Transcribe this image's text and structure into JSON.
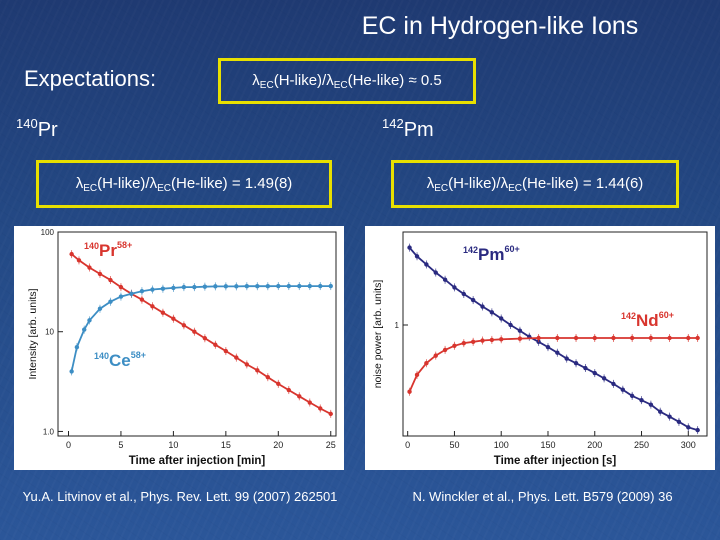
{
  "slide": {
    "title": "EC in Hydrogen-like Ions",
    "expectations_label": "Expectations:",
    "expect_ratio": {
      "lambda": "λ",
      "sub1": "EC",
      "mid": "(H-like)/",
      "sub2": "EC",
      "tail": "(He-like) ≈ 0.5"
    },
    "left_isotope": {
      "mass": "140",
      "symbol": "Pr"
    },
    "right_isotope": {
      "mass": "142",
      "symbol": "Pm"
    },
    "left_ratio": {
      "lambda": "λ",
      "sub1": "EC",
      "mid": "(H-like)/",
      "sub2": "EC",
      "tail": "(He-like) = 1.49(8)"
    },
    "right_ratio": {
      "lambda": "λ",
      "sub1": "EC",
      "mid": "(H-like)/",
      "sub2": "EC",
      "tail": "(He-like) = 1.44(6)"
    },
    "left_citation": "Yu.A. Litvinov et al., Phys. Rev. Lett. 99 (2007) 262501",
    "right_citation": "N. Winckler et al., Phys. Lett. B579 (2009) 36"
  },
  "colors": {
    "highlight": "#e8e000",
    "series_red": "#d8352e",
    "series_blue": "#3d8ec4",
    "series_navy": "#2a2a80",
    "label_red": "#d8352e",
    "label_blue": "#3d8ec4"
  },
  "chart_data": [
    {
      "type": "scatter",
      "title": "",
      "xlabel": "Time after injection [min]",
      "ylabel": "Intensity [arb. units]",
      "xlim": [
        -1,
        25.5
      ],
      "ylim": [
        0.9,
        100
      ],
      "yscale": "log",
      "x_ticks": [
        0,
        5,
        10,
        15,
        20,
        25
      ],
      "y_ticks": [
        1.0,
        10,
        100
      ],
      "y_tick_labels": [
        "1.0",
        "10",
        "100"
      ],
      "series": [
        {
          "name": "140Pr58+",
          "color": "#d8352e",
          "label_mass": "140",
          "label_symbol": "Pr",
          "label_charge": "58+",
          "x": [
            0.3,
            1,
            2,
            3,
            4,
            5,
            6,
            7,
            8,
            9,
            10,
            11,
            12,
            13,
            14,
            15,
            16,
            17,
            18,
            19,
            20,
            21,
            22,
            23,
            24,
            25
          ],
          "y": [
            60,
            52,
            44,
            38,
            33,
            28,
            24,
            21,
            18,
            15.5,
            13.5,
            11.6,
            10,
            8.6,
            7.4,
            6.4,
            5.5,
            4.7,
            4.1,
            3.5,
            3.0,
            2.6,
            2.25,
            1.95,
            1.7,
            1.5
          ]
        },
        {
          "name": "140Ce58+",
          "color": "#3d8ec4",
          "label_mass": "140",
          "label_symbol": "Ce",
          "label_charge": "58+",
          "x": [
            0.3,
            0.8,
            1.5,
            2,
            3,
            4,
            5,
            6,
            7,
            8,
            9,
            10,
            11,
            12,
            13,
            14,
            15,
            16,
            17,
            18,
            19,
            20,
            21,
            22,
            23,
            24,
            25
          ],
          "y": [
            4,
            7,
            10.5,
            13,
            17,
            20,
            22.5,
            24,
            25.5,
            26.5,
            27,
            27.5,
            28,
            28,
            28.3,
            28.5,
            28.5,
            28.5,
            28.6,
            28.6,
            28.6,
            28.7,
            28.7,
            28.7,
            28.7,
            28.7,
            28.7
          ]
        }
      ]
    },
    {
      "type": "scatter",
      "title": "",
      "xlabel": "Time after injection [s]",
      "ylabel": "noise power [arb. units]",
      "xlim": [
        -5,
        320
      ],
      "ylim": [
        0.37,
        2.3
      ],
      "yscale": "log",
      "x_ticks": [
        0,
        50,
        100,
        150,
        200,
        250,
        300
      ],
      "y_ticks": [
        1
      ],
      "y_tick_labels": [
        "1"
      ],
      "series": [
        {
          "name": "142Pm60+",
          "color": "#2a2a80",
          "label_mass": "142",
          "label_symbol": "Pm",
          "label_charge": "60+",
          "x": [
            2,
            10,
            20,
            30,
            40,
            50,
            60,
            70,
            80,
            90,
            100,
            110,
            120,
            130,
            140,
            150,
            160,
            170,
            180,
            190,
            200,
            210,
            220,
            230,
            240,
            250,
            260,
            270,
            280,
            290,
            300,
            310
          ],
          "y": [
            2.0,
            1.85,
            1.72,
            1.6,
            1.5,
            1.4,
            1.32,
            1.25,
            1.18,
            1.12,
            1.06,
            1.0,
            0.95,
            0.9,
            0.86,
            0.82,
            0.78,
            0.74,
            0.71,
            0.68,
            0.65,
            0.62,
            0.59,
            0.56,
            0.53,
            0.51,
            0.49,
            0.46,
            0.44,
            0.42,
            0.4,
            0.39
          ]
        },
        {
          "name": "142Nd60+",
          "color": "#d8352e",
          "label_mass": "142",
          "label_symbol": "Nd",
          "label_charge": "60+",
          "x": [
            2,
            10,
            20,
            30,
            40,
            50,
            60,
            70,
            80,
            90,
            100,
            120,
            140,
            160,
            180,
            200,
            220,
            240,
            260,
            280,
            300,
            310
          ],
          "y": [
            0.55,
            0.64,
            0.71,
            0.76,
            0.8,
            0.83,
            0.85,
            0.86,
            0.87,
            0.875,
            0.88,
            0.885,
            0.89,
            0.89,
            0.89,
            0.89,
            0.89,
            0.89,
            0.89,
            0.89,
            0.89,
            0.89
          ]
        }
      ]
    }
  ]
}
